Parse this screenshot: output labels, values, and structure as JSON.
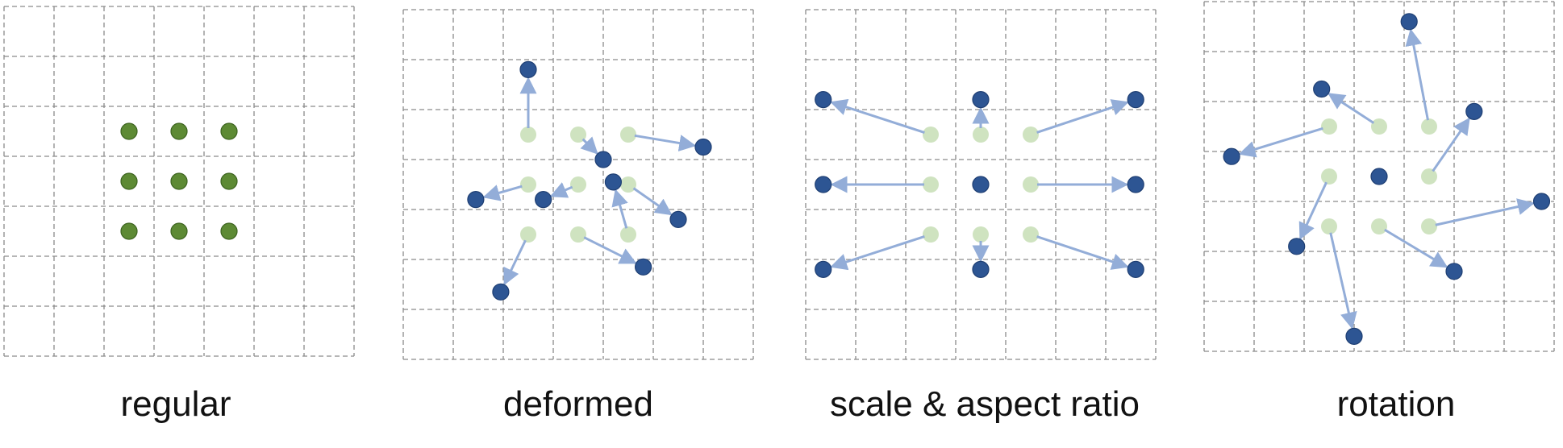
{
  "colors": {
    "regular_point": "#5d8a34",
    "regular_stroke": "#3d6420",
    "original_point": "#cfe3c0",
    "offset_point": "#2d5593",
    "offset_stroke": "#1f3f73",
    "arrow": "#93add8",
    "grid": "#8a8a8a"
  },
  "panels": [
    {
      "id": "regular",
      "caption": "regular",
      "samples": [
        {
          "from": [
            2.5,
            2.5
          ]
        },
        {
          "from": [
            3.5,
            2.5
          ]
        },
        {
          "from": [
            4.5,
            2.5
          ]
        },
        {
          "from": [
            2.5,
            3.5
          ]
        },
        {
          "from": [
            3.5,
            3.5
          ]
        },
        {
          "from": [
            4.5,
            3.5
          ]
        },
        {
          "from": [
            2.5,
            4.5
          ]
        },
        {
          "from": [
            3.5,
            4.5
          ]
        },
        {
          "from": [
            4.5,
            4.5
          ]
        }
      ]
    },
    {
      "id": "deformed",
      "caption": "deformed",
      "samples": [
        {
          "from": [
            2.5,
            2.5
          ],
          "to": [
            2.5,
            1.2
          ]
        },
        {
          "from": [
            3.5,
            2.5
          ],
          "to": [
            4.0,
            3.0
          ]
        },
        {
          "from": [
            4.5,
            2.5
          ],
          "to": [
            6.0,
            2.75
          ]
        },
        {
          "from": [
            2.5,
            3.5
          ],
          "to": [
            1.45,
            3.8
          ]
        },
        {
          "from": [
            3.5,
            3.5
          ],
          "to": [
            2.8,
            3.8
          ]
        },
        {
          "from": [
            4.5,
            3.5
          ],
          "to": [
            5.5,
            4.2
          ]
        },
        {
          "from": [
            2.5,
            4.5
          ],
          "to": [
            1.95,
            5.65
          ]
        },
        {
          "from": [
            3.5,
            4.5
          ],
          "to": [
            4.8,
            5.15
          ]
        },
        {
          "from": [
            4.5,
            4.5
          ],
          "to": [
            4.2,
            3.45
          ]
        }
      ]
    },
    {
      "id": "scale",
      "caption": "scale & aspect ratio",
      "samples": [
        {
          "from": [
            2.5,
            2.5
          ],
          "to": [
            0.35,
            1.8
          ]
        },
        {
          "from": [
            3.5,
            2.5
          ],
          "to": [
            3.5,
            1.8
          ]
        },
        {
          "from": [
            4.5,
            2.5
          ],
          "to": [
            6.6,
            1.8
          ]
        },
        {
          "from": [
            2.5,
            3.5
          ],
          "to": [
            0.35,
            3.5
          ]
        },
        {
          "from": [
            3.5,
            3.5
          ],
          "to": [
            3.5,
            3.5
          ]
        },
        {
          "from": [
            4.5,
            3.5
          ],
          "to": [
            6.6,
            3.5
          ]
        },
        {
          "from": [
            2.5,
            4.5
          ],
          "to": [
            0.35,
            5.2
          ]
        },
        {
          "from": [
            3.5,
            4.5
          ],
          "to": [
            3.5,
            5.2
          ]
        },
        {
          "from": [
            4.5,
            4.5
          ],
          "to": [
            6.6,
            5.2
          ]
        }
      ]
    },
    {
      "id": "rotation",
      "caption": "rotation",
      "samples": [
        {
          "from": [
            2.5,
            2.5
          ],
          "to": [
            0.55,
            3.1
          ]
        },
        {
          "from": [
            3.5,
            2.5
          ],
          "to": [
            2.35,
            1.75
          ]
        },
        {
          "from": [
            4.5,
            2.5
          ],
          "to": [
            4.1,
            0.4
          ]
        },
        {
          "from": [
            2.5,
            3.5
          ],
          "to": [
            1.85,
            4.9
          ]
        },
        {
          "from": [
            3.5,
            3.5
          ],
          "to": [
            3.5,
            3.5
          ]
        },
        {
          "from": [
            4.5,
            3.5
          ],
          "to": [
            5.4,
            2.2
          ]
        },
        {
          "from": [
            2.5,
            4.5
          ],
          "to": [
            3.0,
            6.7
          ]
        },
        {
          "from": [
            3.5,
            4.5
          ],
          "to": [
            5.0,
            5.4
          ]
        },
        {
          "from": [
            4.5,
            4.5
          ],
          "to": [
            6.75,
            4.0
          ]
        }
      ]
    }
  ]
}
